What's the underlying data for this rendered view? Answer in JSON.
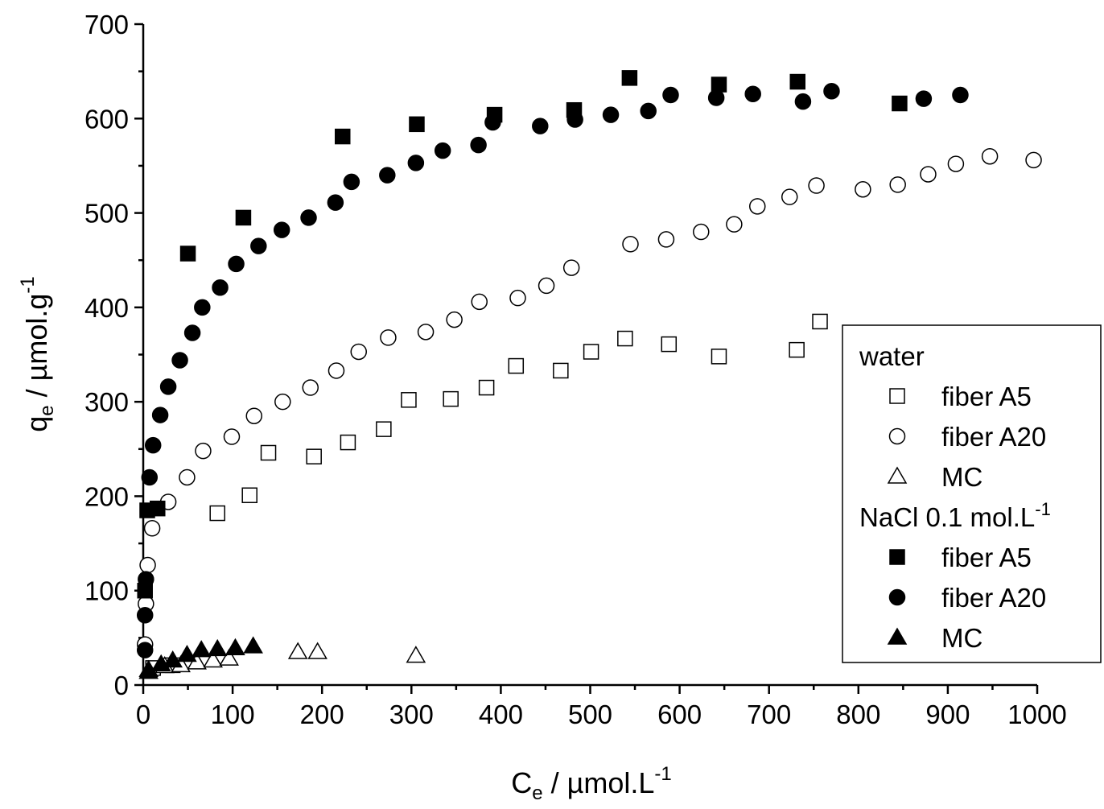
{
  "chart_data": {
    "type": "scatter",
    "xlabel": [
      "C",
      "e",
      " / µmol.L",
      "-1"
    ],
    "ylabel": [
      "q",
      "e",
      " / µmol.g",
      "-1"
    ],
    "xlim": [
      0,
      1000
    ],
    "xticks": [
      0,
      100,
      200,
      300,
      400,
      500,
      600,
      700,
      800,
      900,
      1000
    ],
    "xminorticks": [
      50,
      150,
      250,
      350,
      450,
      550,
      650,
      750,
      850,
      950
    ],
    "ylim": [
      0,
      700
    ],
    "yticks": [
      0,
      100,
      200,
      300,
      400,
      500,
      600,
      700
    ],
    "yminorticks": [
      50,
      150,
      250,
      350,
      450,
      550,
      650
    ],
    "legend": "right",
    "groups": [
      {
        "name": [
          "water"
        ],
        "series": [
          {
            "name": "fiber A5",
            "marker": "square",
            "filled": false,
            "color": "#000000",
            "x": [
              11,
              33,
              83,
              119,
              140,
              191,
              229,
              269,
              297,
              344,
              384,
              417,
              467,
              501,
              539,
              588,
              644,
              731,
              757
            ],
            "y": [
              18,
              21,
              182,
              201,
              246,
              242,
              257,
              271,
              302,
              303,
              315,
              338,
              333,
              353,
              367,
              361,
              348,
              355,
              385
            ]
          },
          {
            "name": "fiber A20",
            "marker": "circle",
            "filled": false,
            "color": "#000000",
            "x": [
              2,
              3,
              5,
              10,
              28,
              49,
              67,
              99,
              124,
              156,
              187,
              216,
              241,
              274,
              316,
              348,
              376,
              419,
              451,
              479,
              545,
              585,
              624,
              661,
              687,
              723,
              753,
              805,
              844,
              878,
              909,
              947,
              996
            ],
            "y": [
              43,
              86,
              127,
              166,
              194,
              220,
              248,
              263,
              285,
              300,
              315,
              333,
              353,
              368,
              374,
              387,
              406,
              410,
              423,
              442,
              467,
              472,
              480,
              488,
              507,
              517,
              529,
              525,
              530,
              541,
              552,
              560,
              556
            ]
          },
          {
            "name": "MC",
            "marker": "triangle",
            "filled": false,
            "color": "#000000",
            "x": [
              6,
              24,
              42,
              60,
              78,
              96,
              173,
              195,
              305
            ],
            "y": [
              16,
              20,
              21,
              24,
              26,
              28,
              35,
              35,
              31
            ]
          }
        ]
      },
      {
        "name": [
          "NaCl 0.1 mol.L",
          "-1"
        ],
        "series": [
          {
            "name": "fiber A5",
            "marker": "square",
            "filled": true,
            "color": "#000000",
            "x": [
              2,
              4.5,
              16,
              50,
              112,
              223,
              306,
              393,
              482,
              544,
              644,
              732,
              846
            ],
            "y": [
              100,
              185,
              187,
              457,
              495,
              581,
              594,
              604,
              609,
              643,
              636,
              639,
              616
            ]
          },
          {
            "name": "fiber A20",
            "marker": "circle",
            "filled": true,
            "color": "#000000",
            "x": [
              2,
              2,
              3,
              7,
              11,
              19,
              28,
              41,
              55,
              66,
              86,
              104,
              129,
              155,
              185,
              215,
              233,
              273,
              305,
              335,
              375,
              391,
              444,
              483,
              523,
              565,
              590,
              641,
              682,
              738,
              770,
              873,
              914
            ],
            "y": [
              37,
              74,
              112,
              220,
              254,
              286,
              316,
              344,
              373,
              400,
              421,
              446,
              465,
              482,
              495,
              511,
              533,
              540,
              553,
              566,
              572,
              596,
              592,
              599,
              604,
              608,
              625,
              622,
              626,
              618,
              629,
              621,
              625
            ]
          },
          {
            "name": "MC",
            "marker": "triangle",
            "filled": true,
            "color": "#000000",
            "x": [
              6,
              20,
              33,
              49,
              65,
              83,
              103,
              123
            ],
            "y": [
              14,
              22,
              26,
              32,
              37,
              38,
              39,
              41
            ]
          }
        ]
      }
    ]
  }
}
